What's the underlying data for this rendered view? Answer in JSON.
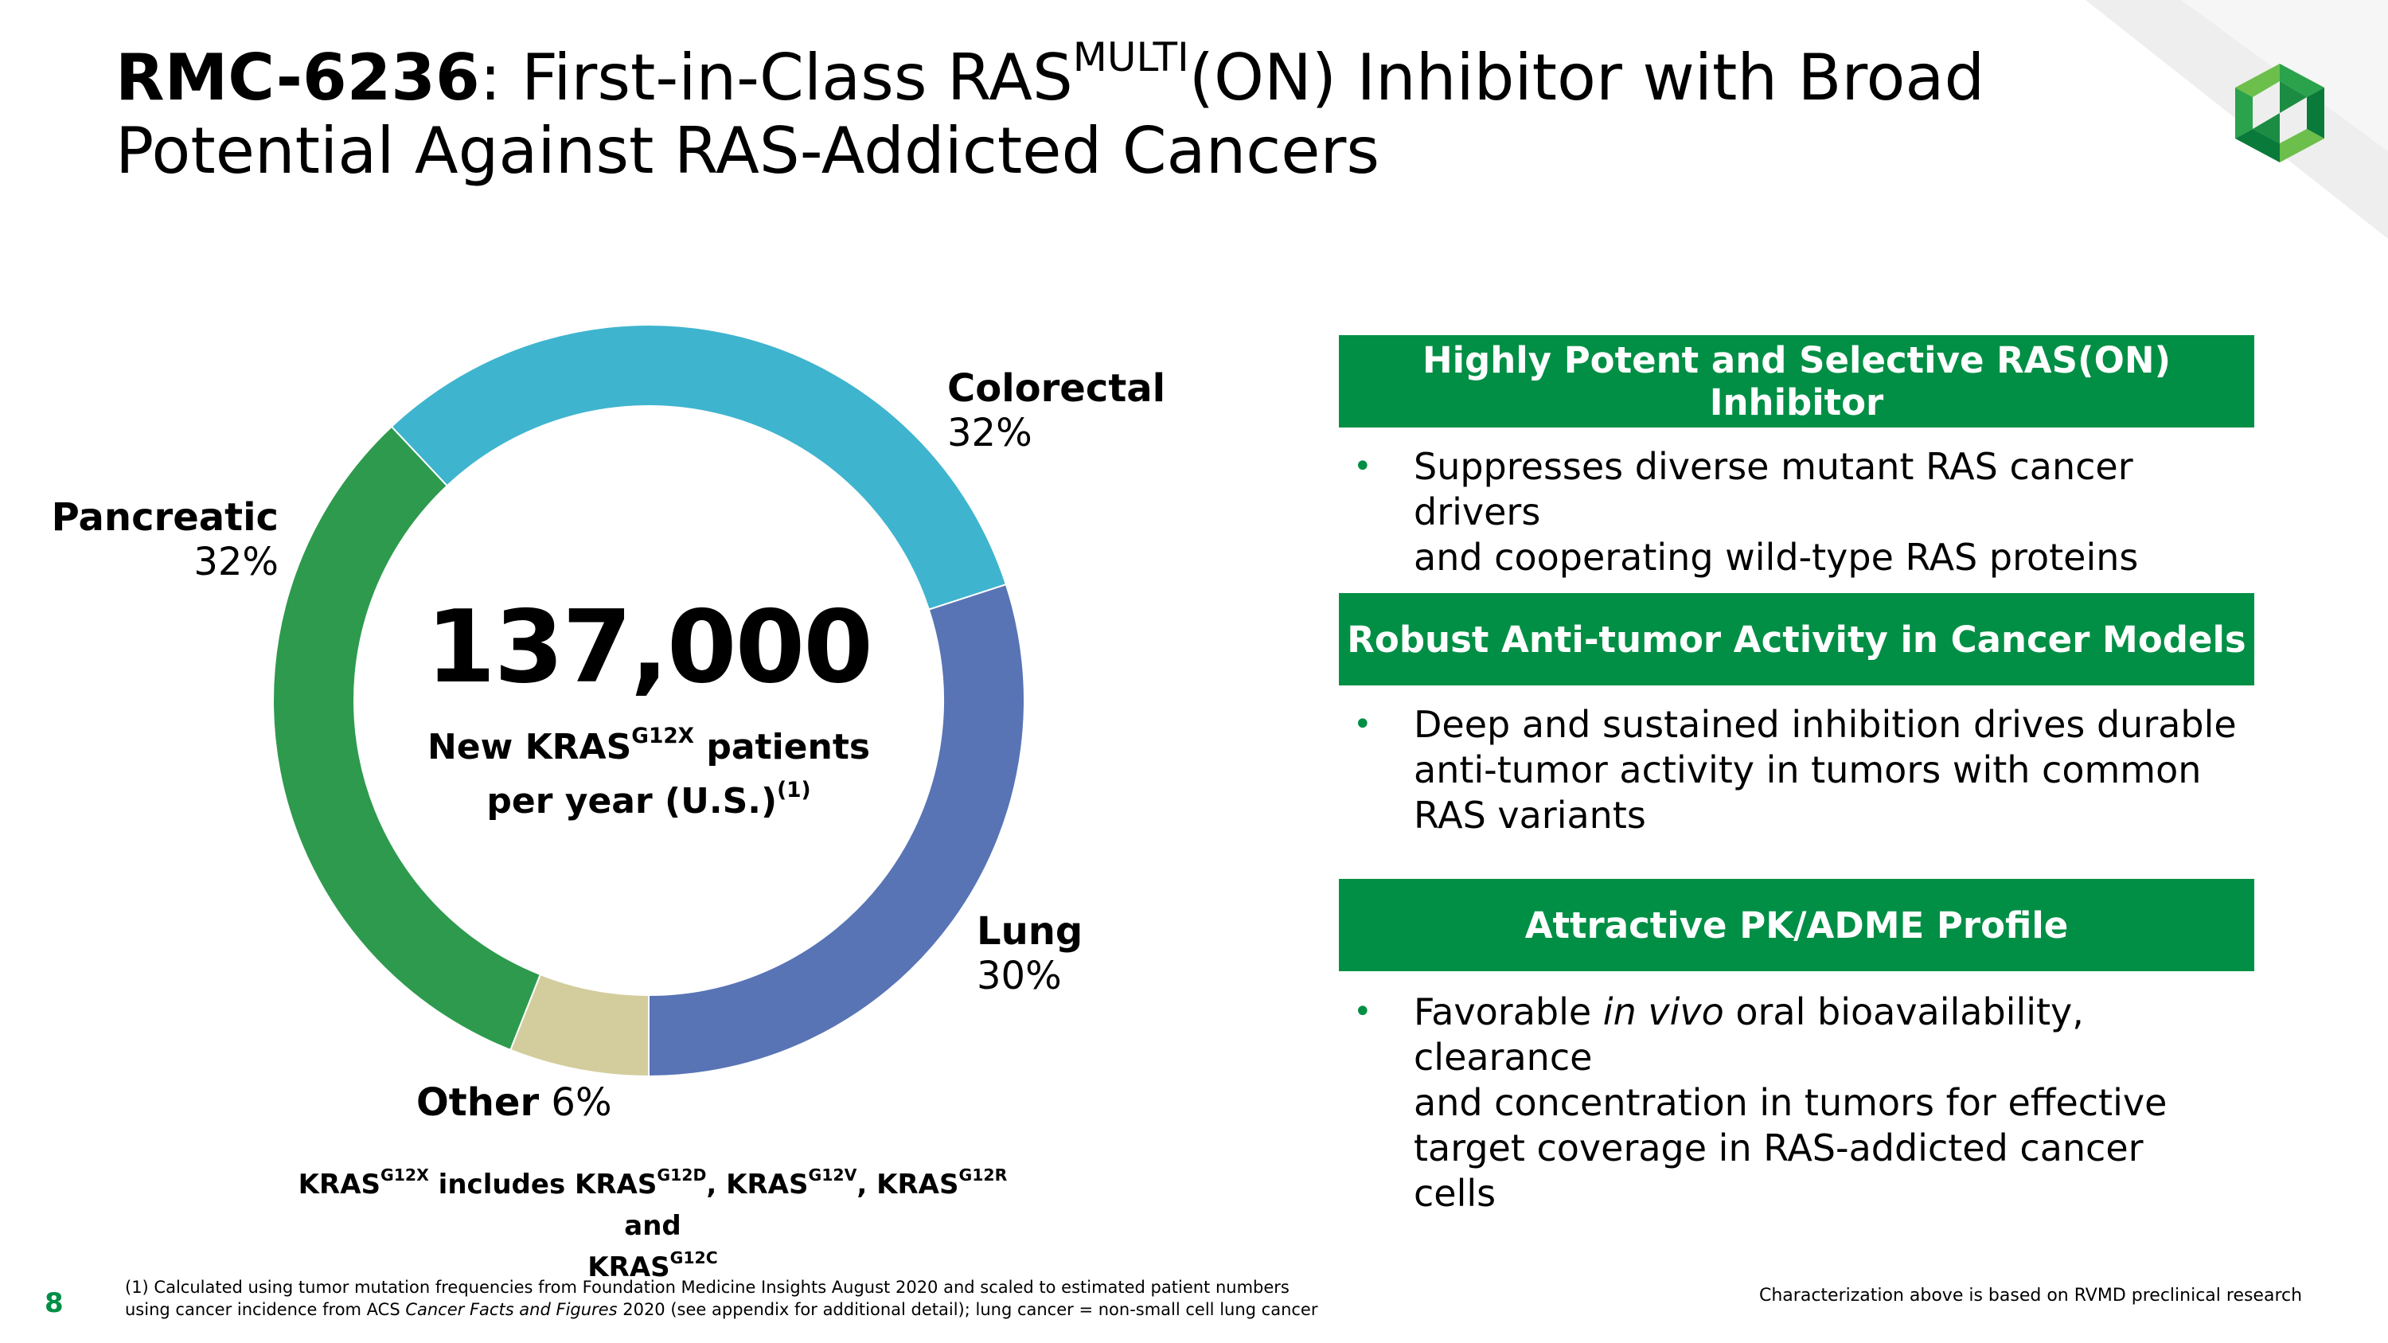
{
  "title": {
    "strong": "RMC-6236",
    "part1": ": First-in-Class RAS",
    "sup": "MULTI",
    "part2": "(ON) Inhibitor with Broad",
    "line2": "Potential Against RAS-Addicted Cancers"
  },
  "chart_data": {
    "type": "pie",
    "categories": [
      "Colorectal",
      "Lung",
      "Other",
      "Pancreatic"
    ],
    "values": [
      32,
      30,
      6,
      32
    ],
    "labels": [
      "32%",
      "30%",
      "6%",
      "32%"
    ],
    "colors": [
      "#3fb4cf",
      "#5874b5",
      "#d3cc9c",
      "#2e9a4e"
    ],
    "center": {
      "value": "137,000",
      "line1_a": "New KRAS",
      "line1_sup": "G12X",
      "line1_b": " patients",
      "line2": "per year (U.S.)",
      "line2_sup": "(1)"
    }
  },
  "chart_note": {
    "a": "KRAS",
    "a_sup": "G12X",
    "b": " includes KRAS",
    "b_sup": "G12D",
    "c": ", KRAS",
    "c_sup": "G12V",
    "d": ", KRAS",
    "d_sup": "G12R",
    "e": " and",
    "f": "KRAS",
    "f_sup": "G12C"
  },
  "panels": [
    {
      "header": "Highly Potent and Selective RAS(ON) Inhibitor",
      "bullet": "•",
      "line1": "Suppresses diverse mutant RAS cancer drivers",
      "line2": "and cooperating wild-type RAS proteins"
    },
    {
      "header": "Robust Anti-tumor Activity in Cancer Models",
      "bullet": "•",
      "line1": "Deep and sustained inhibition drives durable",
      "line2": "anti-tumor activity in tumors with common",
      "line3": "RAS variants"
    },
    {
      "header": "Attractive PK/ADME Profile",
      "bullet": "•",
      "line1_a": "Favorable ",
      "line1_em": "in vivo",
      "line1_b": " oral bioavailability, clearance",
      "line2": "and concentration in tumors for effective",
      "line3": "target coverage in RAS-addicted cancer cells"
    }
  ],
  "footer": {
    "page_number": "8",
    "footnote_a": "(1) Calculated using tumor mutation frequencies from Foundation Medicine Insights August 2020 and scaled to estimated patient numbers",
    "footnote_b": "using cancer incidence from ACS ",
    "footnote_em": "Cancer Facts and Figures",
    "footnote_c": " 2020 (see appendix for additional detail); lung cancer = non-small cell lung cancer",
    "characterization": "Characterization above is based on RVMD preclinical research"
  },
  "brand": {
    "accent": "#008f45",
    "logo_icon": "company-logo-icon"
  }
}
